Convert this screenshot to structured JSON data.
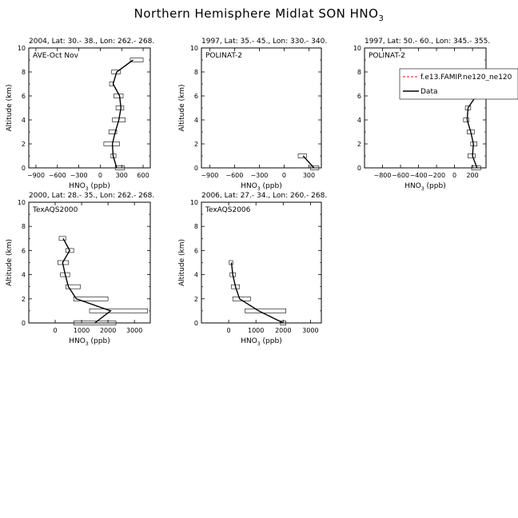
{
  "title": {
    "main": "Northern Hemisphere Midlat SON HNO",
    "sub": "3"
  },
  "legend": {
    "model_label": "f.e13.FAMIP.ne120_ne120",
    "data_label": "Data",
    "model_color": "#ff0000",
    "data_color": "#000000"
  },
  "chart_data": [
    {
      "type": "line",
      "title": "2004, Lat: 30.- 38., Lon: 262.- 268.",
      "campaign": "AVE-Oct Nov",
      "xlabel": "HNO",
      "xlabel_sub": "3",
      "xlabel_unit": " (ppb)",
      "ylabel": "Altitude (km)",
      "xlim": [
        -1000,
        700
      ],
      "ylim": [
        0,
        10
      ],
      "xticks": [
        -900,
        -600,
        -300,
        0,
        300,
        600
      ],
      "yticks": [
        0,
        2,
        4,
        6,
        8,
        10
      ],
      "series": [
        {
          "values": [
            [
              230,
              0
            ],
            [
              180,
              1
            ],
            [
              170,
              2
            ],
            [
              210,
              3
            ],
            [
              260,
              4
            ],
            [
              290,
              5
            ],
            [
              270,
              6
            ],
            [
              180,
              7
            ],
            [
              230,
              8
            ],
            [
              460,
              9
            ]
          ]
        }
      ],
      "boxes": [
        [
          210,
          340,
          0
        ],
        [
          150,
          220,
          1
        ],
        [
          50,
          270,
          2
        ],
        [
          120,
          230,
          3
        ],
        [
          170,
          350,
          4
        ],
        [
          220,
          330,
          5
        ],
        [
          190,
          320,
          6
        ],
        [
          130,
          180,
          7
        ],
        [
          160,
          280,
          8
        ],
        [
          420,
          600,
          9
        ]
      ]
    },
    {
      "type": "line",
      "title": "1997, Lat: 35.- 45., Lon: 330.- 340.",
      "campaign": "POLINAT-2",
      "xlabel": "HNO",
      "xlabel_sub": "3",
      "xlabel_unit": " (ppb)",
      "ylabel": "Altitude (km)",
      "xlim": [
        -1000,
        450
      ],
      "ylim": [
        0,
        10
      ],
      "xticks": [
        -900,
        -600,
        -300,
        0,
        300
      ],
      "yticks": [
        0,
        2,
        4,
        6,
        8,
        10
      ],
      "series": [
        {
          "values": [
            [
              360,
              0
            ],
            [
              230,
              1
            ]
          ]
        }
      ],
      "boxes": [
        [
          320,
          420,
          0
        ],
        [
          170,
          270,
          1
        ]
      ]
    },
    {
      "type": "line",
      "title": "1997, Lat: 50.- 60., Lon: 345.- 355.",
      "campaign": "POLINAT-2",
      "xlabel": "HNO",
      "xlabel_sub": "3",
      "xlabel_unit": " (ppb)",
      "ylabel": "",
      "xlim": [
        -1000,
        350
      ],
      "ylim": [
        0,
        10
      ],
      "xticks": [
        -800,
        -600,
        -400,
        -200,
        0,
        200
      ],
      "xtick_labels": [
        "−800",
        "−600",
        "−400",
        "−200",
        "0",
        "200"
      ],
      "yticks": [
        0,
        2,
        4,
        6,
        8,
        10
      ],
      "series": [
        {
          "values": [
            [
              250,
              0
            ],
            [
              200,
              1
            ],
            [
              210,
              2
            ],
            [
              180,
              3
            ],
            [
              140,
              4
            ],
            [
              150,
              5
            ],
            [
              240,
              6
            ],
            [
              200,
              7
            ]
          ]
        }
      ],
      "boxes": [
        [
          190,
          290,
          0
        ],
        [
          150,
          230,
          1
        ],
        [
          180,
          250,
          2
        ],
        [
          140,
          220,
          3
        ],
        [
          100,
          160,
          4
        ],
        [
          120,
          180,
          5
        ],
        [
          200,
          300,
          6
        ],
        [
          150,
          250,
          7
        ]
      ]
    },
    {
      "type": "line",
      "title": "2000, Lat: 28.- 35., Lon: 262.- 268.",
      "campaign": "TexAQS2000",
      "xlabel": "HNO",
      "xlabel_sub": "3",
      "xlabel_unit": " (ppb)",
      "ylabel": "Altitude (km)",
      "xlim": [
        -1000,
        3600
      ],
      "ylim": [
        0,
        10
      ],
      "xticks": [
        0,
        1000,
        2000,
        3000
      ],
      "yticks": [
        0,
        2,
        4,
        6,
        8,
        10
      ],
      "series": [
        {
          "values": [
            [
              1500,
              0
            ],
            [
              2100,
              1
            ],
            [
              800,
              2
            ],
            [
              500,
              3
            ],
            [
              380,
              4
            ],
            [
              280,
              5
            ],
            [
              550,
              6
            ],
            [
              300,
              7
            ]
          ]
        }
      ],
      "boxes": [
        [
          700,
          2300,
          0
        ],
        [
          1300,
          3500,
          1
        ],
        [
          700,
          2000,
          2
        ],
        [
          400,
          950,
          3
        ],
        [
          200,
          550,
          4
        ],
        [
          100,
          500,
          5
        ],
        [
          400,
          700,
          6
        ],
        [
          150,
          400,
          7
        ]
      ]
    },
    {
      "type": "line",
      "title": "2006, Lat: 27.- 34., Lon: 260.- 268.",
      "campaign": "TexAQS2006",
      "xlabel": "HNO",
      "xlabel_sub": "3",
      "xlabel_unit": " (ppb)",
      "ylabel": "Altitude (km)",
      "xlim": [
        -1000,
        3400
      ],
      "ylim": [
        0,
        10
      ],
      "xticks": [
        0,
        1000,
        2000,
        3000
      ],
      "yticks": [
        0,
        2,
        4,
        6,
        8,
        10
      ],
      "series": [
        {
          "values": [
            [
              2000,
              0
            ],
            [
              1100,
              1
            ],
            [
              400,
              2
            ],
            [
              250,
              3
            ],
            [
              150,
              4
            ],
            [
              100,
              5
            ]
          ]
        }
      ],
      "boxes": [
        [
          1900,
          2100,
          0
        ],
        [
          600,
          2100,
          1
        ],
        [
          150,
          800,
          2
        ],
        [
          100,
          400,
          3
        ],
        [
          50,
          250,
          4
        ],
        [
          20,
          150,
          5
        ]
      ]
    }
  ]
}
